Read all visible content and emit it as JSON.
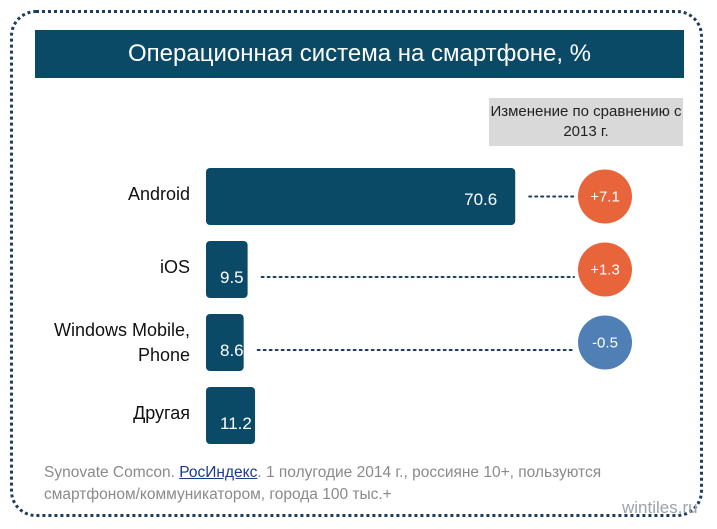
{
  "title": "Операционная система на смартфоне, %",
  "change_header": "Изменение по сравнению с 2013 г.",
  "chart_data": {
    "type": "bar",
    "orientation": "horizontal",
    "categories": [
      "Android",
      "iOS",
      "Windows Mobile, Phone",
      "Другая"
    ],
    "values": [
      70.6,
      9.5,
      8.6,
      11.2
    ],
    "value_labels": [
      "70.6",
      "9.5",
      "8.6",
      "11.2"
    ],
    "changes": [
      {
        "value": 7.1,
        "label": "+7.1",
        "color": "#e8643a"
      },
      {
        "value": 1.3,
        "label": "+1.3",
        "color": "#e8643a"
      },
      {
        "value": -0.5,
        "label": "-0.5",
        "color": "#4f7fb5"
      },
      null
    ],
    "bar_color": "#0b4a66",
    "title": "Операционная система на смартфоне, %"
  },
  "source": {
    "prefix": "Synovate Comcon. ",
    "link": "РосИндекс",
    "suffix": ". 1 полугодие 2014 г., россияне 10+, пользуются смартфоном/коммуникатором, города 100 тыс.+"
  },
  "watermark": "wintiles.ru",
  "colors": {
    "title_bg": "#0b4a66",
    "positive": "#e8643a",
    "negative": "#4f7fb5",
    "header_box": "#d9d9d9"
  }
}
